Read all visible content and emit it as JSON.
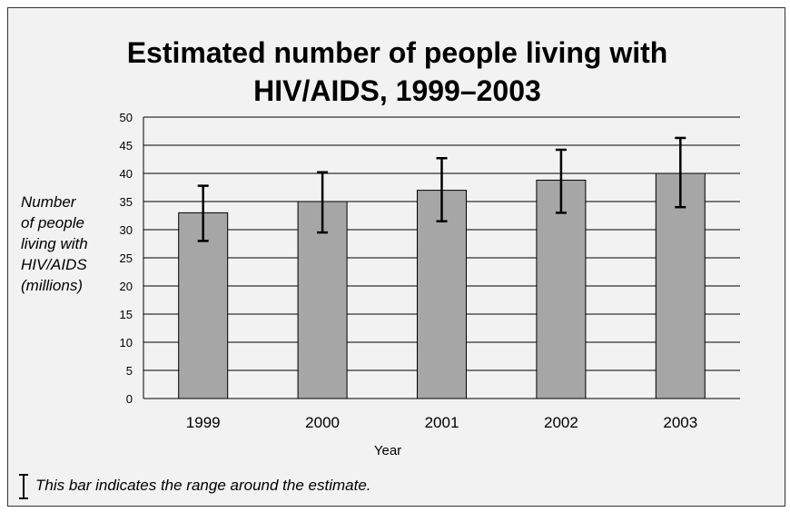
{
  "chart_data": {
    "type": "bar",
    "title_lines": [
      "Estimated number of people living with",
      "HIV/AIDS, 1999–2003"
    ],
    "xlabel": "Year",
    "ylabel_lines": [
      "Number",
      "of people",
      "living with",
      "HIV/AIDS",
      "(millions)"
    ],
    "categories": [
      "1999",
      "2000",
      "2001",
      "2002",
      "2003"
    ],
    "values": [
      33,
      35,
      37,
      38.8,
      40
    ],
    "range_low": [
      28,
      29.5,
      31.5,
      33,
      34
    ],
    "range_high": [
      37.8,
      40.2,
      42.7,
      44.2,
      46.3
    ],
    "ylim": [
      0,
      50
    ],
    "yticks": [
      "0",
      "5",
      "10",
      "15",
      "20",
      "25",
      "30",
      "35",
      "40",
      "45",
      "50"
    ],
    "grid": true,
    "bar_color": "#a6a6a6",
    "background_color": "#f2f2f2",
    "footnote": "This bar indicates the range around the estimate."
  }
}
